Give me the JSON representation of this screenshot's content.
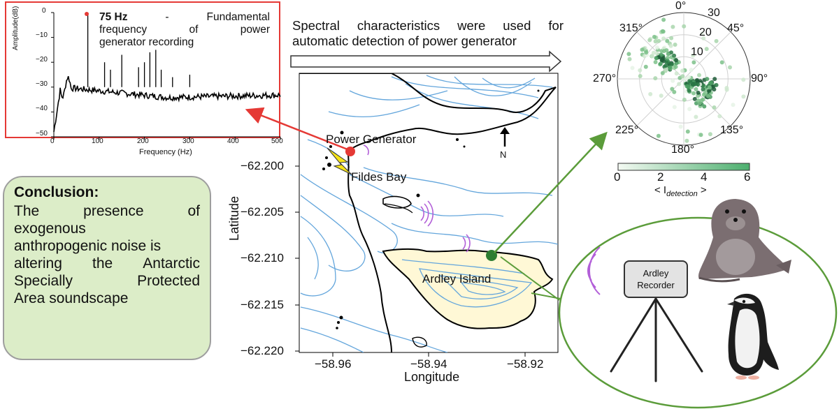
{
  "spectrum": {
    "annotation_bold": "75 Hz",
    "annotation_line1_words": [
      "-",
      "Fundamental"
    ],
    "annotation_line2_words": [
      "frequency",
      "of",
      "power"
    ],
    "annotation_line3": "generator recording",
    "ylabel": "Amplitude(dB)",
    "xlabel": "Frequency (Hz)",
    "y_ticks": [
      "0",
      "−10",
      "−20",
      "−30",
      "−40",
      "−50"
    ],
    "x_ticks": [
      "0",
      "100",
      "200",
      "300",
      "400",
      "500"
    ],
    "colors": {
      "frame": "#e53935",
      "line": "#000000",
      "peak": "#e53935"
    }
  },
  "arrow_caption": {
    "line1_words": [
      "Spectral",
      "characteristics",
      "were",
      "used",
      "for"
    ],
    "line2": "automatic detection of power generator"
  },
  "map": {
    "labels": {
      "power_generator": "Power Generator",
      "fildes_bay": "Fildes Bay",
      "ardley_island": "Ardley Island",
      "north": "N"
    },
    "ylabel": "Latitude",
    "xlabel": "Longitude",
    "y_ticks": [
      "−62.200",
      "−62.205",
      "−62.210",
      "−62.215",
      "−62.220"
    ],
    "x_ticks": [
      "−58.96",
      "−58.94",
      "−58.92"
    ],
    "colors": {
      "contour": "#64a6dc",
      "coast": "#000000",
      "island": "#fff8d6",
      "generator": "#e53935",
      "recorder": "#2e7d32"
    }
  },
  "polar": {
    "angle_labels": [
      "0°",
      "45°",
      "90°",
      "135°",
      "180°",
      "225°",
      "270°",
      "315°"
    ],
    "radial_labels": [
      "10",
      "20",
      "30"
    ],
    "colorbar_ticks": [
      "0",
      "2",
      "4",
      "6"
    ],
    "colorbar_label_main": "< I",
    "colorbar_label_sub": "detection",
    "colorbar_label_end": " >"
  },
  "conclusion": {
    "title": "Conclusion:",
    "line1_words": [
      "The",
      "presence",
      "of"
    ],
    "line2": "exogenous",
    "line3": "anthropogenic noise is",
    "line4_words": [
      "altering",
      "the",
      "Antarctic"
    ],
    "line5_words": [
      "Specially",
      "Protected"
    ],
    "line6": "Area soundscape"
  },
  "recorder": {
    "line1": "Ardley",
    "line2": "Recorder"
  }
}
